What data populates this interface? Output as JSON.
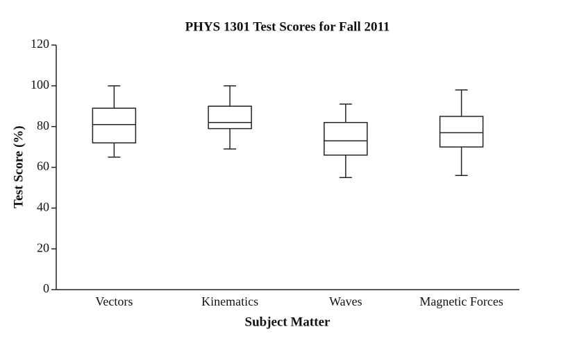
{
  "chart_data": {
    "type": "box",
    "title": "PHYS 1301 Test Scores for Fall 2011",
    "x_label": "Subject Matter",
    "y_label": "Test Score (%)",
    "categories": [
      "Vectors",
      "Kinematics",
      "Waves",
      "Magnetic Forces"
    ],
    "series": [
      {
        "min": [
          65,
          69,
          55,
          56
        ],
        "q1": [
          72,
          79,
          66,
          70
        ],
        "median": [
          81,
          82,
          73,
          77
        ],
        "q3": [
          89,
          90,
          82,
          85
        ],
        "max": [
          100,
          100,
          91,
          98
        ],
        "color": "#ffffff"
      }
    ],
    "ylim": [
      0,
      120
    ],
    "yticks": [
      0,
      20,
      40,
      60,
      80,
      100,
      120
    ]
  }
}
